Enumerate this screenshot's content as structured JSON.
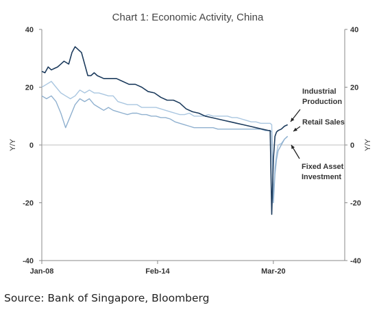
{
  "chart_data": {
    "type": "line",
    "title": "Chart 1: Economic Activity, China",
    "ylabel": "Y/Y",
    "ylabel_right": "Y/Y",
    "ylim": [
      -40,
      40
    ],
    "yticks": [
      40,
      20,
      0,
      -20,
      -40
    ],
    "yticks_right": [
      40,
      20,
      0,
      -20,
      -40
    ],
    "xlim": [
      "2008-01",
      "2023-12"
    ],
    "xticks": [
      {
        "label": "Jan-08",
        "date": "2008-01"
      },
      {
        "label": "Feb-14",
        "date": "2014-02"
      },
      {
        "label": "Mar-20",
        "date": "2020-03"
      }
    ],
    "grid": false,
    "colors": {
      "Industrial Production": "#1b3a5c",
      "Retail Sales": "#a9c6e0",
      "Fixed Asset Investment": "#8fb0cf"
    },
    "annotations": [
      {
        "text_lines": [
          "Industrial",
          "Production"
        ],
        "series": "Industrial Production"
      },
      {
        "text_lines": [
          "Retail Sales"
        ],
        "series": "Retail Sales"
      },
      {
        "text_lines": [
          "Fixed Asset",
          "Investment"
        ],
        "series": "Fixed Asset Investment"
      }
    ],
    "series": [
      {
        "name": "Industrial Production",
        "x": [
          "2008-01",
          "2008-03",
          "2008-05",
          "2008-07",
          "2008-09",
          "2008-11",
          "2009-01",
          "2009-03",
          "2009-06",
          "2009-08",
          "2009-10",
          "2009-12",
          "2010-02",
          "2010-04",
          "2010-06",
          "2010-08",
          "2010-10",
          "2010-12",
          "2011-04",
          "2011-08",
          "2011-12",
          "2012-04",
          "2012-08",
          "2012-12",
          "2013-04",
          "2013-08",
          "2013-12",
          "2014-04",
          "2014-08",
          "2014-12",
          "2015-04",
          "2015-08",
          "2015-12",
          "2016-04",
          "2016-08",
          "2016-12",
          "2017-04",
          "2017-08",
          "2017-12",
          "2018-04",
          "2018-08",
          "2018-12",
          "2019-04",
          "2019-08",
          "2019-12",
          "2020-01",
          "2020-02",
          "2020-03",
          "2020-04",
          "2020-05",
          "2020-06",
          "2020-08",
          "2020-10",
          "2020-12"
        ],
        "values": [
          25.5,
          25,
          27,
          26,
          26.5,
          27,
          28,
          29,
          28,
          32,
          34,
          33,
          32,
          28,
          24,
          24,
          25,
          24,
          23,
          23,
          23,
          22,
          21,
          21,
          20,
          18.5,
          18,
          16.5,
          15.5,
          15.5,
          14.5,
          12.5,
          11.5,
          11,
          10,
          9.5,
          9,
          8.5,
          8,
          7.5,
          7,
          6.5,
          6,
          5.5,
          5,
          5,
          -24,
          -5,
          3,
          4.5,
          5,
          5.5,
          6.5,
          7
        ]
      },
      {
        "name": "Retail Sales",
        "x": [
          "2008-01",
          "2008-04",
          "2008-07",
          "2008-10",
          "2009-01",
          "2009-04",
          "2009-07",
          "2009-10",
          "2010-01",
          "2010-04",
          "2010-07",
          "2010-10",
          "2011-01",
          "2011-04",
          "2011-07",
          "2011-10",
          "2012-01",
          "2012-04",
          "2012-07",
          "2012-10",
          "2013-01",
          "2013-04",
          "2013-07",
          "2013-10",
          "2014-01",
          "2014-04",
          "2014-07",
          "2014-10",
          "2015-01",
          "2015-04",
          "2015-07",
          "2015-10",
          "2016-01",
          "2016-04",
          "2016-07",
          "2016-10",
          "2017-01",
          "2017-04",
          "2017-07",
          "2017-10",
          "2018-01",
          "2018-04",
          "2018-07",
          "2018-10",
          "2019-01",
          "2019-04",
          "2019-07",
          "2019-10",
          "2020-01",
          "2020-02",
          "2020-03",
          "2020-04",
          "2020-05",
          "2020-06",
          "2020-08",
          "2020-10",
          "2020-12"
        ],
        "values": [
          20,
          21,
          22,
          20,
          18,
          17,
          16,
          17,
          19,
          18,
          19,
          18,
          18,
          17.5,
          17,
          17,
          15,
          14.5,
          14,
          14,
          14,
          13,
          13,
          13,
          13,
          12.5,
          12,
          11.5,
          11,
          10.5,
          10.5,
          11,
          10,
          10,
          10,
          10.5,
          10,
          10,
          10,
          10,
          9.5,
          9.5,
          9,
          8.5,
          8,
          8,
          7.5,
          7.5,
          7.5,
          7,
          -18,
          -8,
          -3,
          0,
          0.5,
          2,
          3
        ]
      },
      {
        "name": "Fixed Asset Investment",
        "x": [
          "2008-01",
          "2008-04",
          "2008-07",
          "2008-10",
          "2009-01",
          "2009-04",
          "2009-07",
          "2009-10",
          "2010-01",
          "2010-04",
          "2010-07",
          "2010-10",
          "2011-01",
          "2011-04",
          "2011-07",
          "2011-10",
          "2012-01",
          "2012-04",
          "2012-07",
          "2012-10",
          "2013-01",
          "2013-04",
          "2013-07",
          "2013-10",
          "2014-01",
          "2014-04",
          "2014-07",
          "2014-10",
          "2015-01",
          "2015-04",
          "2015-07",
          "2015-10",
          "2016-01",
          "2016-04",
          "2016-07",
          "2016-10",
          "2017-01",
          "2017-04",
          "2017-07",
          "2017-10",
          "2018-01",
          "2018-04",
          "2018-07",
          "2018-10",
          "2019-01",
          "2019-04",
          "2019-07",
          "2019-10",
          "2020-01",
          "2020-02",
          "2020-03",
          "2020-04",
          "2020-05",
          "2020-06",
          "2020-08",
          "2020-10",
          "2020-12"
        ],
        "values": [
          17,
          16,
          17,
          15,
          11,
          6,
          10,
          14,
          16,
          15,
          16,
          14,
          13,
          12,
          13,
          12,
          11.5,
          11,
          10.5,
          11,
          11,
          10.5,
          10.5,
          10,
          10,
          9.5,
          9.5,
          9,
          8,
          7.5,
          7,
          6.5,
          6,
          6,
          6,
          6,
          6,
          5.5,
          5.5,
          5.5,
          5.5,
          5.5,
          5.5,
          5.5,
          5.5,
          5.5,
          5.5,
          5,
          5,
          4.5,
          -20,
          -10,
          -5,
          -2,
          0,
          2,
          3
        ]
      }
    ]
  },
  "source": "Source: Bank of Singapore, Bloomberg"
}
